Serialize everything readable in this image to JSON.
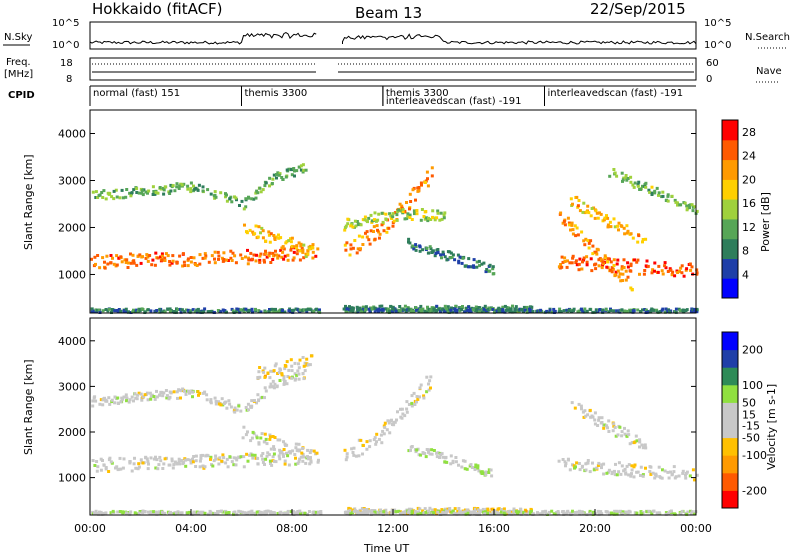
{
  "header": {
    "station": "Hokkaido (fitACF)",
    "beam": "Beam 13",
    "date": "22/Sep/2015"
  },
  "noise_panel": {
    "left_label": "N.Sky",
    "right_label": "N.Search",
    "left_ticks": [
      "10^5",
      "10^0"
    ],
    "right_ticks": [
      "10^5",
      "10^0"
    ],
    "scale": "log"
  },
  "freq_panel": {
    "left_label_1": "Freq.",
    "left_label_2": "[MHz]",
    "right_label": "Nave",
    "left_ticks": [
      "18",
      "8"
    ],
    "right_ticks": [
      "60",
      "0"
    ]
  },
  "cpid": {
    "label": "CPID",
    "modes": [
      {
        "start_h": 0.0,
        "text": "normal (fast) 151"
      },
      {
        "start_h": 6.0,
        "text": "themis 3300"
      },
      {
        "start_h": 11.6,
        "text": "themis 3300"
      },
      {
        "start_h": 11.6,
        "text": "interleavedscan (fast) -191"
      },
      {
        "start_h": 18.0,
        "text": "interleavedscan (fast) -191"
      }
    ]
  },
  "colors": {
    "power_scale": [
      "#0000ff",
      "#1f3fa8",
      "#2e7d5b",
      "#57a657",
      "#9fd13c",
      "#ffd000",
      "#ff9a00",
      "#ff5a00",
      "#ff0000"
    ],
    "velocity_scale": [
      "#ff0000",
      "#ff5a00",
      "#ff9a00",
      "#ffc000",
      "#c8c8c8",
      "#c8c8c8",
      "#90e040",
      "#2e8b57",
      "#1f3fa8",
      "#0000ff"
    ]
  },
  "chart_data": [
    {
      "type": "heatmap",
      "name": "power",
      "ylabel": "Slant Range [km]",
      "yticks": [
        1000,
        2000,
        3000,
        4000
      ],
      "ylim": [
        180,
        4500
      ],
      "xlim_h": [
        0,
        24
      ],
      "colorbar": {
        "label": "Power [dB]",
        "ticks": [
          4,
          8,
          12,
          16,
          20,
          24,
          28
        ],
        "range": [
          0,
          30
        ]
      },
      "bands": [
        {
          "t": [
            0,
            6,
            9
          ],
          "r": [
            1300,
            1400,
            1500
          ],
          "w": 300,
          "v": 24
        },
        {
          "t": [
            0,
            4,
            6,
            7.2,
            8.5
          ],
          "r": [
            2700,
            2900,
            2500,
            3100,
            3300
          ],
          "w": 200,
          "v": 12
        },
        {
          "t": [
            6,
            8.8
          ],
          "r": [
            2000,
            1500
          ],
          "w": 300,
          "v": 20
        },
        {
          "t": [
            10,
            11.5,
            13.5
          ],
          "r": [
            1500,
            2000,
            3200
          ],
          "w": 350,
          "v": 22
        },
        {
          "t": [
            10,
            12,
            14
          ],
          "r": [
            2100,
            2300,
            2300
          ],
          "w": 250,
          "v": 14
        },
        {
          "t": [
            12.5,
            16
          ],
          "r": [
            1700,
            1100
          ],
          "w": 200,
          "v": 8
        },
        {
          "t": [
            18.5,
            24
          ],
          "r": [
            1300,
            1100
          ],
          "w": 300,
          "v": 25
        },
        {
          "t": [
            18.5,
            21.5
          ],
          "r": [
            2300,
            700
          ],
          "w": 250,
          "v": 22
        },
        {
          "t": [
            19,
            22
          ],
          "r": [
            2600,
            1700
          ],
          "w": 250,
          "v": 20
        },
        {
          "t": [
            20.5,
            24
          ],
          "r": [
            3200,
            2400
          ],
          "w": 200,
          "v": 13
        },
        {
          "t": [
            10,
            17.5
          ],
          "r": [
            300,
            300
          ],
          "w": 120,
          "v": 10
        },
        {
          "t": [
            0,
            24
          ],
          "r": [
            260,
            260
          ],
          "w": 80,
          "v": 8
        }
      ],
      "gap_h": [
        9.0,
        10.0
      ]
    },
    {
      "type": "heatmap",
      "name": "velocity",
      "ylabel": "Slant Range [km]",
      "yticks": [
        1000,
        2000,
        3000,
        4000
      ],
      "ylim": [
        180,
        4500
      ],
      "xlim_h": [
        0,
        24
      ],
      "xlabel": "Time UT",
      "xticks": [
        "00:00",
        "04:00",
        "08:00",
        "12:00",
        "16:00",
        "20:00",
        "00:00"
      ],
      "colorbar": {
        "label": "Velocity [m s-1]",
        "ticks": [
          200,
          100,
          50,
          15,
          -15,
          -50,
          -100,
          -200
        ],
        "range": [
          -250,
          250
        ]
      },
      "bands": [
        {
          "t": [
            0,
            6,
            9
          ],
          "r": [
            1300,
            1400,
            1500
          ],
          "w": 300,
          "v": 0
        },
        {
          "t": [
            0,
            4,
            6,
            7.2,
            8.5
          ],
          "r": [
            2700,
            2900,
            2500,
            3100,
            3300
          ],
          "w": 200,
          "v": 0
        },
        {
          "t": [
            6.5,
            8.8
          ],
          "r": [
            3300,
            3600
          ],
          "w": 300,
          "v": -40
        },
        {
          "t": [
            6,
            8.8
          ],
          "r": [
            2000,
            1500
          ],
          "w": 300,
          "v": -5
        },
        {
          "t": [
            10,
            11.5,
            13.5
          ],
          "r": [
            1500,
            2000,
            3200
          ],
          "w": 350,
          "v": 0
        },
        {
          "t": [
            12.5,
            16
          ],
          "r": [
            1700,
            1100
          ],
          "w": 200,
          "v": 40
        },
        {
          "t": [
            18.5,
            24
          ],
          "r": [
            1300,
            1100
          ],
          "w": 300,
          "v": 0
        },
        {
          "t": [
            19,
            22
          ],
          "r": [
            2600,
            1700
          ],
          "w": 250,
          "v": 0
        },
        {
          "t": [
            10,
            17.5
          ],
          "r": [
            300,
            300
          ],
          "w": 120,
          "v": -40
        },
        {
          "t": [
            0,
            24
          ],
          "r": [
            260,
            260
          ],
          "w": 80,
          "v": 20
        }
      ],
      "gap_h": [
        9.0,
        10.0
      ]
    }
  ]
}
